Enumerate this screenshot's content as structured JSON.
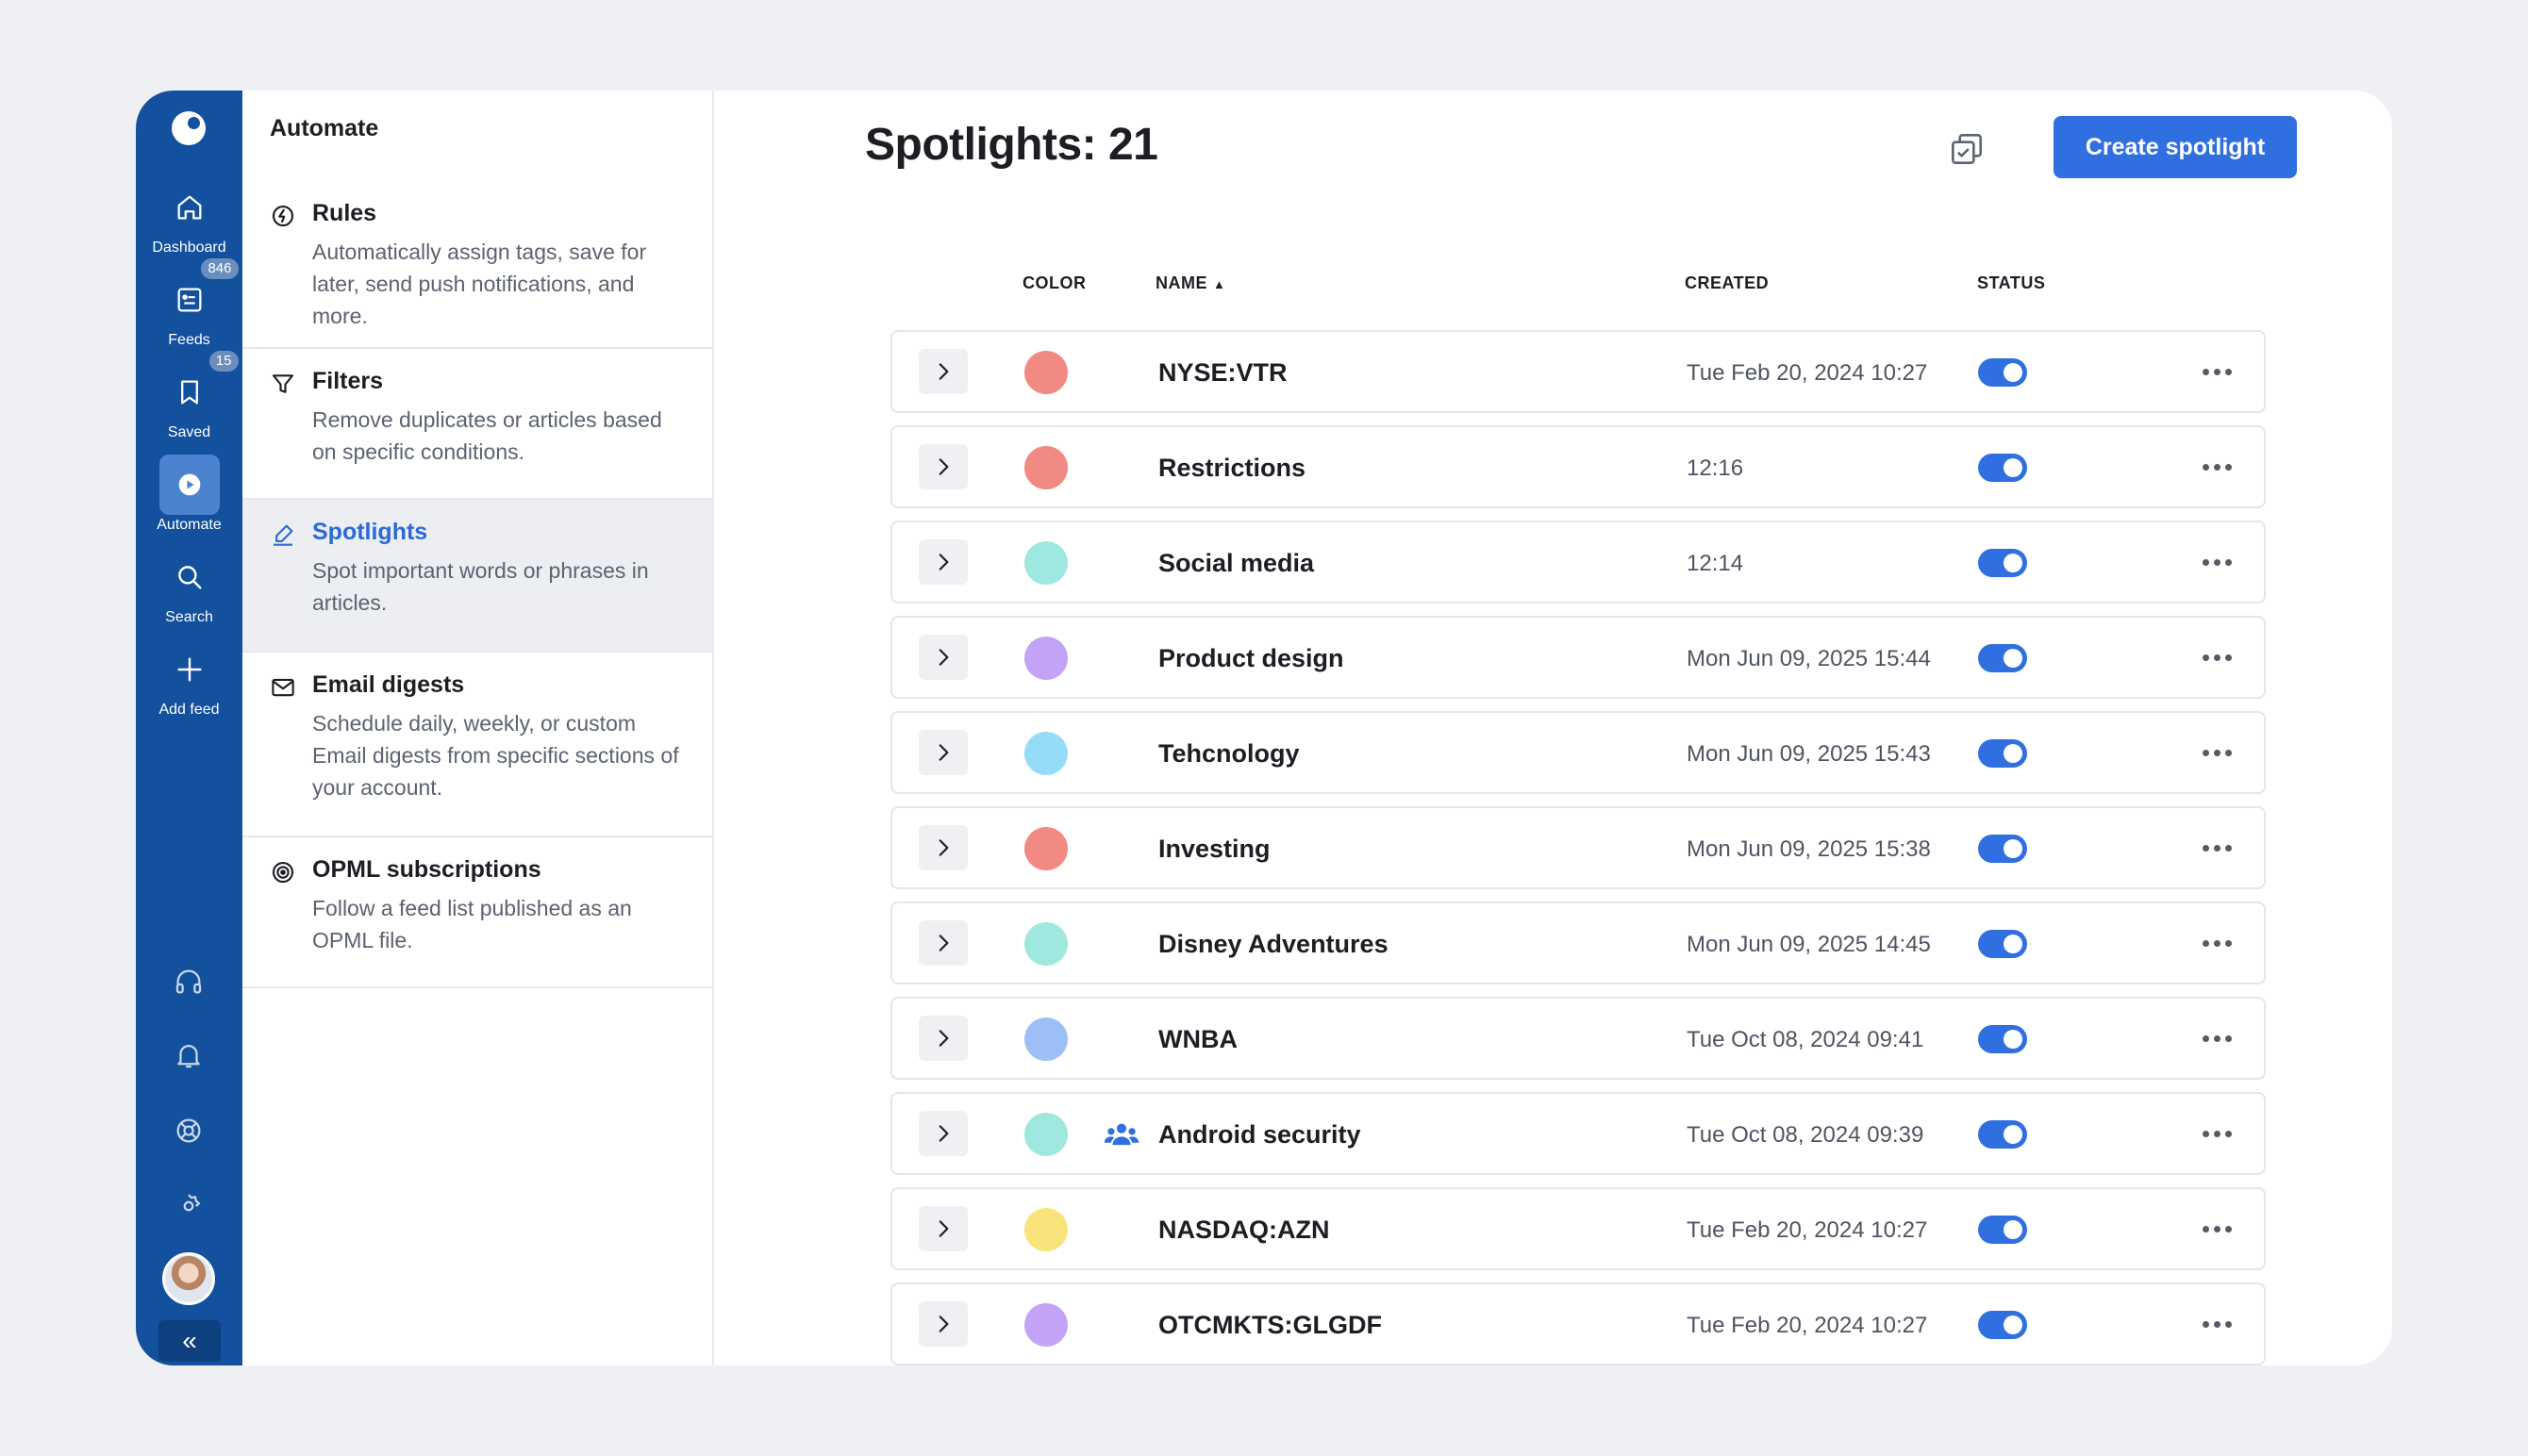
{
  "rail": {
    "items": [
      {
        "label": "Dashboard",
        "icon": "home-icon",
        "badge": ""
      },
      {
        "label": "Feeds",
        "icon": "feeds-icon",
        "badge": "846"
      },
      {
        "label": "Saved",
        "icon": "bookmark-icon",
        "badge": "15"
      },
      {
        "label": "Automate",
        "icon": "automate-icon",
        "badge": "",
        "active": true
      },
      {
        "label": "Search",
        "icon": "search-icon",
        "badge": ""
      },
      {
        "label": "Add feed",
        "icon": "plus-icon",
        "badge": ""
      }
    ],
    "bottom_icons": [
      "headphones-icon",
      "bell-icon",
      "help-icon",
      "gear-icon"
    ],
    "collapse_glyph": "«"
  },
  "panel": {
    "title": "Automate",
    "items": [
      {
        "title": "Rules",
        "desc": "Automatically assign tags, save for later, send push notifications, and more.",
        "icon": "rules-icon"
      },
      {
        "title": "Filters",
        "desc": "Remove duplicates or articles based on specific conditions.",
        "icon": "filter-icon"
      },
      {
        "title": "Spotlights",
        "desc": "Spot important words or phrases in articles.",
        "icon": "highlighter-icon",
        "active": true
      },
      {
        "title": "Email digests",
        "desc": "Schedule daily, weekly, or custom Email digests from specific sections of your account.",
        "icon": "mail-icon"
      },
      {
        "title": "OPML subscriptions",
        "desc": "Follow a feed list published as an OPML file.",
        "icon": "opml-icon"
      }
    ]
  },
  "main": {
    "title": "Spotlights: 21",
    "create_button": "Create spotlight",
    "columns": {
      "color": "COLOR",
      "name": "NAME",
      "sort_glyph": "▲",
      "created": "CREATED",
      "status": "STATUS"
    },
    "rows": [
      {
        "name": "NYSE:VTR",
        "created": "Tue Feb 20, 2024 10:27",
        "color": "#f08a82",
        "shared": false,
        "enabled": true
      },
      {
        "name": "Restrictions",
        "created": "12:16",
        "color": "#f08a82",
        "shared": false,
        "enabled": true
      },
      {
        "name": "Social media",
        "created": "12:14",
        "color": "#9fe8df",
        "shared": false,
        "enabled": true
      },
      {
        "name": "Product design",
        "created": "Mon Jun 09, 2025 15:44",
        "color": "#c3a3f5",
        "shared": false,
        "enabled": true
      },
      {
        "name": "Tehcnology",
        "created": "Mon Jun 09, 2025 15:43",
        "color": "#95dcf8",
        "shared": false,
        "enabled": true
      },
      {
        "name": "Investing",
        "created": "Mon Jun 09, 2025 15:38",
        "color": "#f08a82",
        "shared": false,
        "enabled": true
      },
      {
        "name": "Disney Adventures",
        "created": "Mon Jun 09, 2025 14:45",
        "color": "#9fe8df",
        "shared": false,
        "enabled": true
      },
      {
        "name": "WNBA",
        "created": "Tue Oct 08, 2024 09:41",
        "color": "#9cc0f5",
        "shared": false,
        "enabled": true
      },
      {
        "name": "Android security",
        "created": "Tue Oct 08, 2024 09:39",
        "color": "#9fe8df",
        "shared": true,
        "enabled": true
      },
      {
        "name": "NASDAQ:AZN",
        "created": "Tue Feb 20, 2024 10:27",
        "color": "#fae37a",
        "shared": false,
        "enabled": true
      },
      {
        "name": "OTCMKTS:GLGDF",
        "created": "Tue Feb 20, 2024 10:27",
        "color": "#c3a3f5",
        "shared": false,
        "enabled": true
      }
    ]
  }
}
